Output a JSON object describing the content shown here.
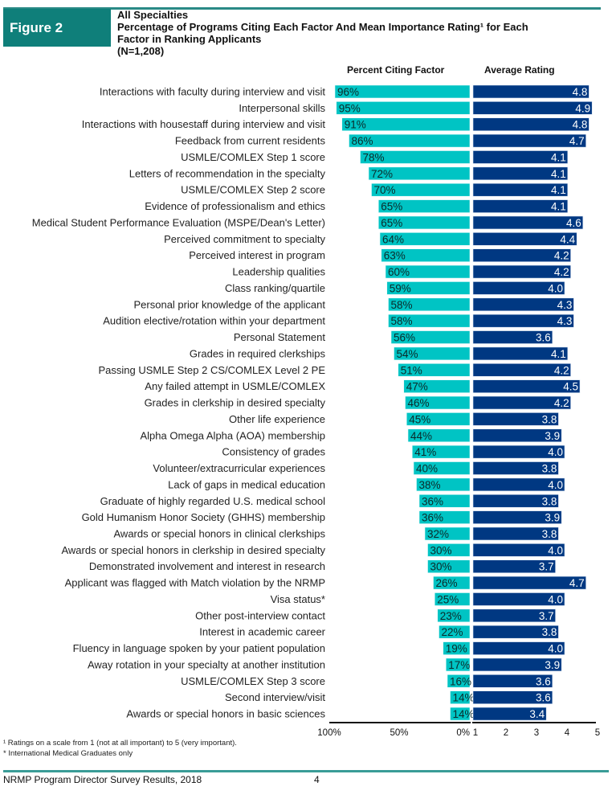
{
  "figure": {
    "label": "Figure 2",
    "title_lines": [
      "All Specialties",
      "Percentage of Programs Citing Each Factor And Mean Importance Rating¹ for Each",
      "Factor in Ranking Applicants",
      "(N=1,208)"
    ]
  },
  "colors": {
    "brand_teal": "#0f7f7a",
    "percent_bar": "#00c4c4",
    "rating_bar": "#003882"
  },
  "notes": [
    "¹ Ratings on a scale from 1 (not at all important) to 5 (very important).",
    "* International Medical Graduates only"
  ],
  "footer": {
    "text": "NRMP Program Director Survey Results, 2018",
    "page_number": "4"
  },
  "chart_data": {
    "type": "bar",
    "orientation": "horizontal",
    "title": "Percentage of Programs Citing Each Factor And Mean Importance Rating for Each Factor in Ranking Applicants",
    "categories": [
      "Interactions with faculty during interview and visit",
      "Interpersonal skills",
      "Interactions with housestaff during interview and visit",
      "Feedback from current residents",
      "USMLE/COMLEX Step 1 score",
      "Letters of recommendation in the specialty",
      "USMLE/COMLEX Step 2 score",
      "Evidence of professionalism and ethics",
      "Medical Student Performance Evaluation (MSPE/Dean's Letter)",
      "Perceived commitment to specialty",
      "Perceived interest in program",
      "Leadership qualities",
      "Class ranking/quartile",
      "Personal prior knowledge of the applicant",
      "Audition elective/rotation within your department",
      "Personal Statement",
      "Grades in required clerkships",
      "Passing USMLE Step 2 CS/COMLEX Level 2 PE",
      "Any failed attempt in USMLE/COMLEX",
      "Grades in clerkship in desired specialty",
      "Other life experience",
      "Alpha Omega Alpha (AOA) membership",
      "Consistency of grades",
      "Volunteer/extracurricular experiences",
      "Lack of gaps in medical education",
      "Graduate of highly regarded U.S. medical school",
      "Gold Humanism Honor Society (GHHS) membership",
      "Awards or special honors in clinical clerkships",
      "Awards or special honors in clerkship in desired specialty",
      "Demonstrated involvement and interest in research",
      "Applicant was flagged with Match violation by the NRMP",
      "Visa status*",
      "Other post-interview contact",
      "Interest in academic career",
      "Fluency in language spoken by your patient population",
      "Away rotation in your specialty at another institution",
      "USMLE/COMLEX Step 3 score",
      "Second interview/visit",
      "Awards or special honors in basic sciences"
    ],
    "series": [
      {
        "name": "Percent Citing Factor",
        "unit": "%",
        "direction": "leftward",
        "xlim": [
          0,
          100
        ],
        "ticks": [
          "100%",
          "50%",
          "0%"
        ],
        "values": [
          96,
          95,
          91,
          86,
          78,
          72,
          70,
          65,
          65,
          64,
          63,
          60,
          59,
          58,
          58,
          56,
          54,
          51,
          47,
          46,
          45,
          44,
          41,
          40,
          38,
          36,
          36,
          32,
          30,
          30,
          26,
          25,
          23,
          22,
          19,
          17,
          16,
          14,
          14
        ],
        "labels": [
          "96%",
          "95%",
          "91%",
          "86%",
          "78%",
          "72%",
          "70%",
          "65%",
          "65%",
          "64%",
          "63%",
          "60%",
          "59%",
          "58%",
          "58%",
          "56%",
          "54%",
          "51%",
          "47%",
          "46%",
          "45%",
          "44%",
          "41%",
          "40%",
          "38%",
          "36%",
          "36%",
          "32%",
          "30%",
          "30%",
          "26%",
          "25%",
          "23%",
          "22%",
          "19%",
          "17%",
          "16%",
          "14%",
          "14%"
        ]
      },
      {
        "name": "Average Rating",
        "unit": "",
        "direction": "rightward",
        "xlim": [
          1,
          5
        ],
        "ticks": [
          "1",
          "2",
          "3",
          "4",
          "5"
        ],
        "values": [
          4.8,
          4.9,
          4.8,
          4.7,
          4.1,
          4.1,
          4.1,
          4.1,
          4.6,
          4.4,
          4.2,
          4.2,
          4.0,
          4.3,
          4.3,
          3.6,
          4.1,
          4.2,
          4.5,
          4.2,
          3.8,
          3.9,
          4.0,
          3.8,
          4.0,
          3.8,
          3.9,
          3.8,
          4.0,
          3.7,
          4.7,
          4.0,
          3.7,
          3.8,
          4.0,
          3.9,
          3.6,
          3.6,
          3.4
        ],
        "labels": [
          "4.8",
          "4.9",
          "4.8",
          "4.7",
          "4.1",
          "4.1",
          "4.1",
          "4.1",
          "4.6",
          "4.4",
          "4.2",
          "4.2",
          "4.0",
          "4.3",
          "4.3",
          "3.6",
          "4.1",
          "4.2",
          "4.5",
          "4.2",
          "3.8",
          "3.9",
          "4.0",
          "3.8",
          "4.0",
          "3.8",
          "3.9",
          "3.8",
          "4.0",
          "3.7",
          "4.7",
          "4.0",
          "3.7",
          "3.8",
          "4.0",
          "3.9",
          "3.6",
          "3.6",
          "3.4"
        ]
      }
    ],
    "column_headers": [
      "Percent Citing Factor",
      "Average Rating"
    ],
    "grid": false,
    "legend": "none"
  }
}
